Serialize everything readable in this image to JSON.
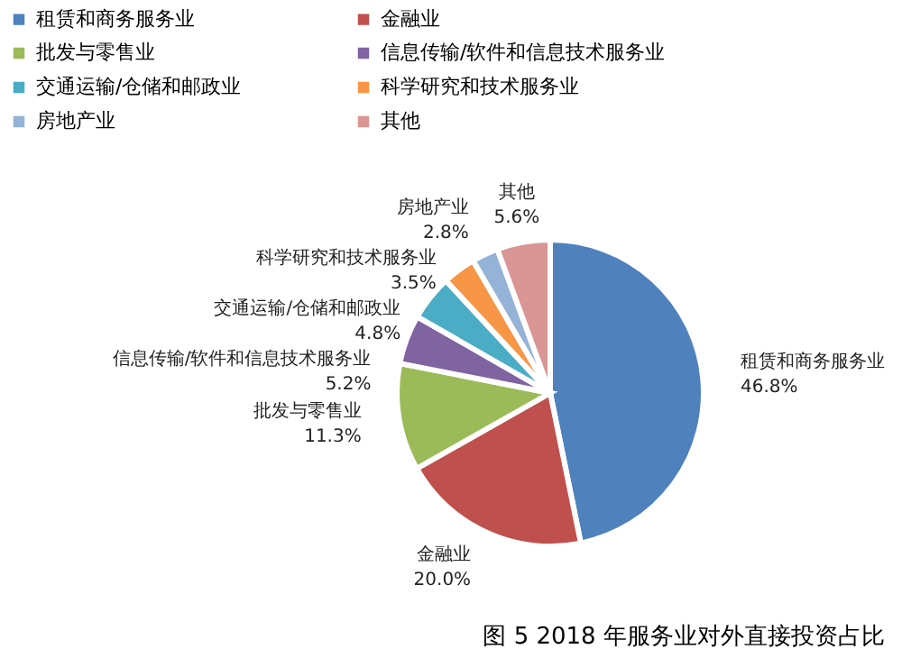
{
  "chart_data": {
    "type": "pie",
    "title": "图 5 2018 年服务业对外直接投资占比",
    "categories": [
      "租赁和商务服务业",
      "金融业",
      "批发与零售业",
      "信息传输/软件和信息技术服务业",
      "交通运输/仓储和邮政业",
      "科学研究和技术服务业",
      "房地产业",
      "其他"
    ],
    "values": [
      46.8,
      20.0,
      11.3,
      5.2,
      4.8,
      3.5,
      2.8,
      5.6
    ],
    "colors": [
      "#4f81bd",
      "#c0504d",
      "#9bbb59",
      "#8064a2",
      "#4bacc6",
      "#f79646",
      "#95b3d7",
      "#d99694"
    ],
    "value_labels": [
      "46.8%",
      "20.0%",
      "11.3%",
      "5.2%",
      "4.8%",
      "3.5%",
      "2.8%",
      "5.6%"
    ],
    "legend": "top"
  }
}
